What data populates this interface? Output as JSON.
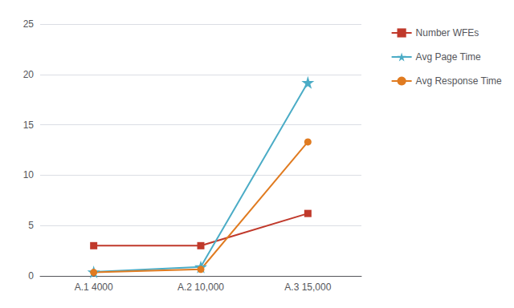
{
  "chart_data": {
    "type": "line",
    "categories": [
      "A.1 4000",
      "A.2 10,000",
      "A.3 15,000"
    ],
    "series": [
      {
        "name": "Number WFEs",
        "color": "#C0392B",
        "marker": "square",
        "values": [
          3.0,
          3.0,
          6.2
        ]
      },
      {
        "name": "Avg Page Time",
        "color": "#4BACC6",
        "marker": "star",
        "values": [
          0.4,
          0.9,
          19.2
        ]
      },
      {
        "name": "Avg Response Time",
        "color": "#E07B20",
        "marker": "circle",
        "values": [
          0.35,
          0.65,
          13.3
        ]
      }
    ],
    "ylim": [
      0,
      25
    ],
    "yticks": [
      0,
      5,
      10,
      15,
      20,
      25
    ],
    "grid": true,
    "legend": "right"
  }
}
